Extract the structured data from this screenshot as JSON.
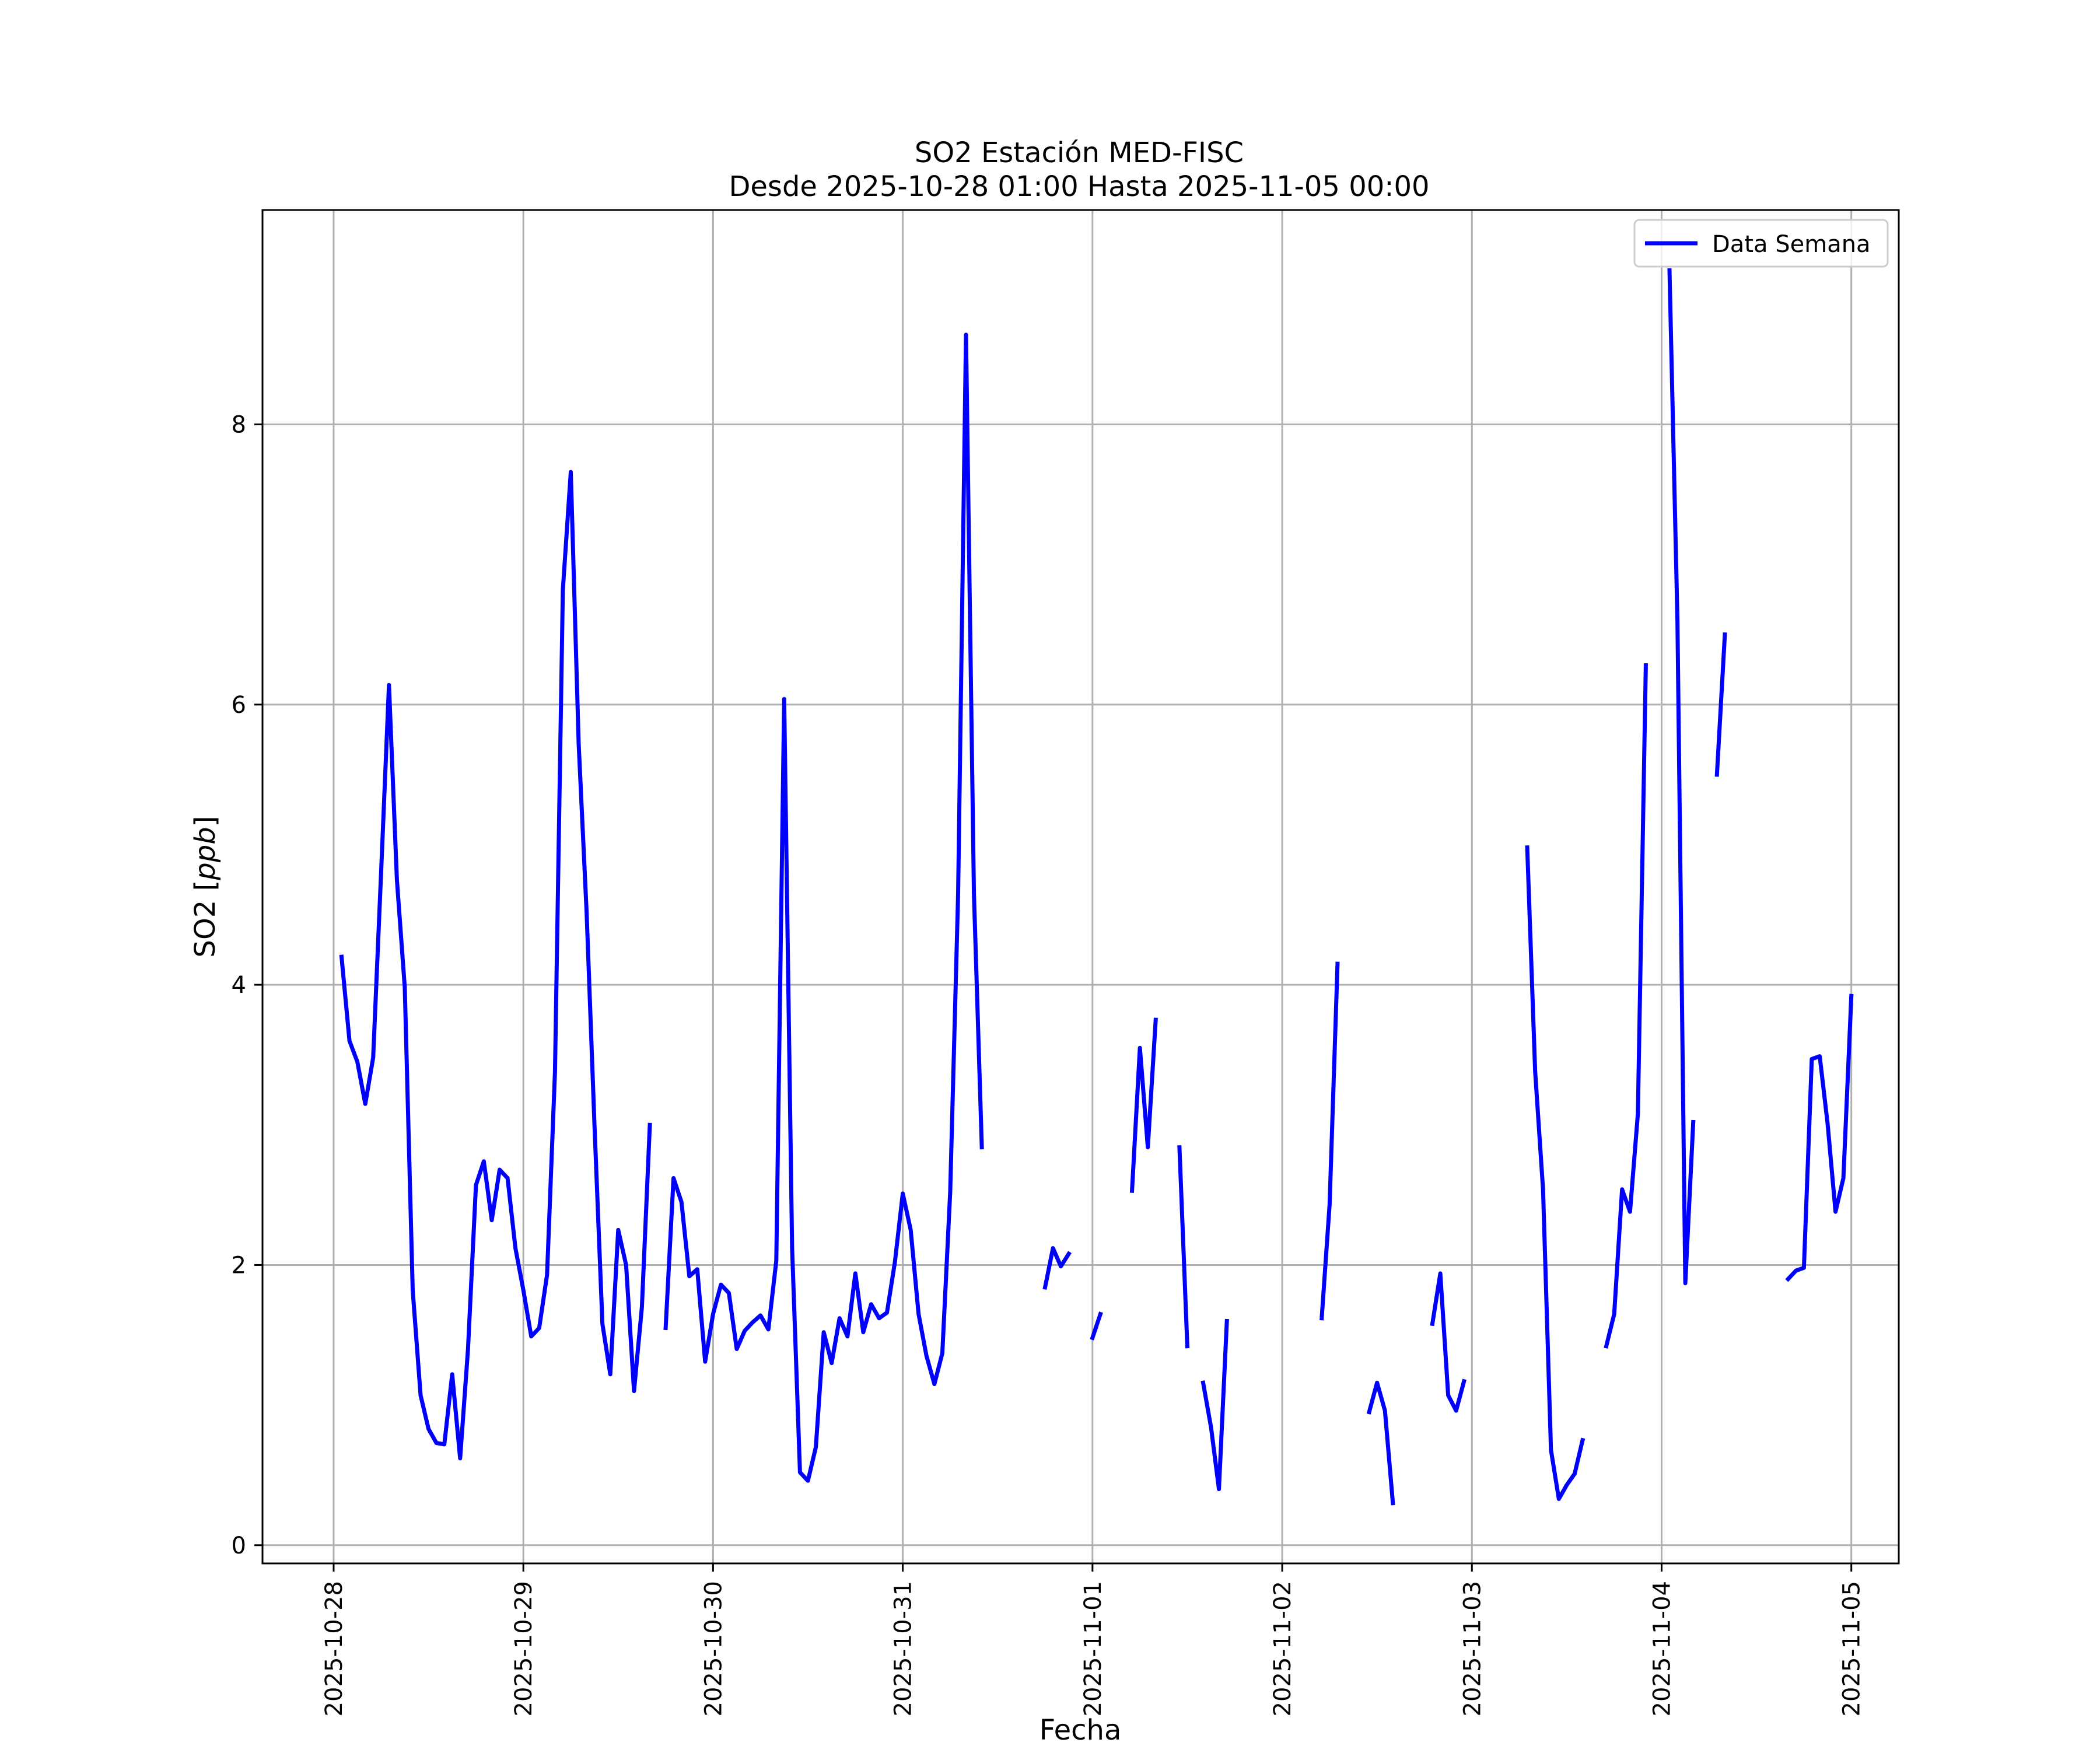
{
  "chart_data": {
    "type": "line",
    "title_line1": "SO2 Estación MED-FISC",
    "title_line2": "Desde 2025-10-28 01:00 Hasta 2025-11-05 00:00",
    "xlabel": "Fecha",
    "ylabel_prefix": "SO2 [",
    "ylabel_unit": "ppb",
    "ylabel_suffix": "]",
    "x_ticks": [
      "2025-10-28",
      "2025-10-29",
      "2025-10-30",
      "2025-10-31",
      "2025-11-01",
      "2025-11-02",
      "2025-11-03",
      "2025-11-04",
      "2025-11-05"
    ],
    "y_ticks": [
      "0",
      "2",
      "4",
      "6",
      "8"
    ],
    "ylim": [
      -0.13,
      9.53
    ],
    "xlim": [
      "2025-10-27 15:00",
      "2025-11-05 06:00"
    ],
    "grid": true,
    "legend_position": "top-right",
    "series": [
      {
        "name": "Data Semana",
        "color": "#0000ff",
        "segments": [
          [
            [
              "2025-10-28 01:00",
              4.2
            ],
            [
              "2025-10-28 02:00",
              3.6
            ],
            [
              "2025-10-28 03:00",
              3.45
            ],
            [
              "2025-10-28 04:00",
              3.15
            ],
            [
              "2025-10-28 05:00",
              3.48
            ],
            [
              "2025-10-28 06:00",
              4.8
            ],
            [
              "2025-10-28 07:00",
              6.14
            ],
            [
              "2025-10-28 08:00",
              4.75
            ],
            [
              "2025-10-28 09:00",
              3.98
            ],
            [
              "2025-10-28 10:00",
              1.82
            ],
            [
              "2025-10-28 11:00",
              1.07
            ],
            [
              "2025-10-28 12:00",
              0.83
            ],
            [
              "2025-10-28 13:00",
              0.73
            ],
            [
              "2025-10-28 14:00",
              0.72
            ],
            [
              "2025-10-28 15:00",
              1.22
            ],
            [
              "2025-10-28 16:00",
              0.62
            ],
            [
              "2025-10-28 17:00",
              1.4
            ],
            [
              "2025-10-28 18:00",
              2.57
            ],
            [
              "2025-10-28 19:00",
              2.74
            ],
            [
              "2025-10-28 20:00",
              2.32
            ],
            [
              "2025-10-28 21:00",
              2.68
            ],
            [
              "2025-10-28 22:00",
              2.62
            ],
            [
              "2025-10-28 23:00",
              2.12
            ],
            [
              "2025-10-29 00:00",
              1.82
            ],
            [
              "2025-10-29 01:00",
              1.49
            ],
            [
              "2025-10-29 02:00",
              1.55
            ],
            [
              "2025-10-29 03:00",
              1.93
            ],
            [
              "2025-10-29 04:00",
              3.38
            ],
            [
              "2025-10-29 05:00",
              6.82
            ],
            [
              "2025-10-29 06:00",
              7.66
            ],
            [
              "2025-10-29 07:00",
              5.72
            ],
            [
              "2025-10-29 08:00",
              4.52
            ],
            [
              "2025-10-29 09:00",
              3.0
            ],
            [
              "2025-10-29 10:00",
              1.58
            ],
            [
              "2025-10-29 11:00",
              1.22
            ],
            [
              "2025-10-29 12:00",
              2.25
            ],
            [
              "2025-10-29 13:00",
              2.0
            ],
            [
              "2025-10-29 14:00",
              1.1
            ],
            [
              "2025-10-29 15:00",
              1.7
            ],
            [
              "2025-10-29 16:00",
              3.0
            ]
          ],
          [
            [
              "2025-10-29 18:00",
              1.55
            ],
            [
              "2025-10-29 19:00",
              2.62
            ],
            [
              "2025-10-29 20:00",
              2.45
            ],
            [
              "2025-10-29 21:00",
              1.92
            ],
            [
              "2025-10-29 22:00",
              1.97
            ],
            [
              "2025-10-29 23:00",
              1.31
            ],
            [
              "2025-10-30 00:00",
              1.65
            ],
            [
              "2025-10-30 01:00",
              1.86
            ],
            [
              "2025-10-30 02:00",
              1.8
            ],
            [
              "2025-10-30 03:00",
              1.4
            ],
            [
              "2025-10-30 04:00",
              1.53
            ],
            [
              "2025-10-30 05:00",
              1.59
            ],
            [
              "2025-10-30 06:00",
              1.64
            ],
            [
              "2025-10-30 07:00",
              1.54
            ],
            [
              "2025-10-30 08:00",
              2.03
            ],
            [
              "2025-10-30 09:00",
              6.04
            ],
            [
              "2025-10-30 10:00",
              2.12
            ],
            [
              "2025-10-30 11:00",
              0.52
            ],
            [
              "2025-10-30 12:00",
              0.46
            ],
            [
              "2025-10-30 13:00",
              0.7
            ],
            [
              "2025-10-30 14:00",
              1.52
            ],
            [
              "2025-10-30 15:00",
              1.3
            ],
            [
              "2025-10-30 16:00",
              1.62
            ],
            [
              "2025-10-30 17:00",
              1.49
            ],
            [
              "2025-10-30 18:00",
              1.94
            ],
            [
              "2025-10-30 19:00",
              1.52
            ],
            [
              "2025-10-30 20:00",
              1.72
            ],
            [
              "2025-10-30 21:00",
              1.62
            ],
            [
              "2025-10-30 22:00",
              1.66
            ],
            [
              "2025-10-30 23:00",
              2.02
            ],
            [
              "2025-10-31 00:00",
              2.51
            ],
            [
              "2025-10-31 01:00",
              2.25
            ],
            [
              "2025-10-31 02:00",
              1.65
            ],
            [
              "2025-10-31 03:00",
              1.35
            ],
            [
              "2025-10-31 04:00",
              1.15
            ],
            [
              "2025-10-31 05:00",
              1.37
            ],
            [
              "2025-10-31 06:00",
              2.52
            ],
            [
              "2025-10-31 07:00",
              4.65
            ],
            [
              "2025-10-31 08:00",
              8.64
            ],
            [
              "2025-10-31 09:00",
              4.65
            ],
            [
              "2025-10-31 10:00",
              2.84
            ]
          ],
          [
            [
              "2025-10-31 18:00",
              1.84
            ],
            [
              "2025-10-31 19:00",
              2.12
            ],
            [
              "2025-10-31 20:00",
              1.99
            ],
            [
              "2025-10-31 21:00",
              2.08
            ]
          ],
          [
            [
              "2025-11-01 00:00",
              1.48
            ],
            [
              "2025-11-01 01:00",
              1.65
            ]
          ],
          [
            [
              "2025-11-01 05:00",
              2.53
            ],
            [
              "2025-11-01 06:00",
              3.55
            ],
            [
              "2025-11-01 07:00",
              2.84
            ],
            [
              "2025-11-01 08:00",
              3.75
            ]
          ],
          [
            [
              "2025-11-01 11:00",
              2.84
            ],
            [
              "2025-11-01 12:00",
              1.42
            ]
          ],
          [
            [
              "2025-11-01 14:00",
              1.16
            ],
            [
              "2025-11-01 15:00",
              0.84
            ],
            [
              "2025-11-01 16:00",
              0.4
            ],
            [
              "2025-11-01 17:00",
              1.6
            ]
          ],
          [
            [
              "2025-11-02 05:00",
              1.62
            ],
            [
              "2025-11-02 06:00",
              2.43
            ],
            [
              "2025-11-02 07:00",
              4.15
            ]
          ],
          [
            [
              "2025-11-02 11:00",
              0.95
            ],
            [
              "2025-11-02 12:00",
              1.16
            ],
            [
              "2025-11-02 13:00",
              0.96
            ],
            [
              "2025-11-02 14:00",
              0.3
            ]
          ],
          [
            [
              "2025-11-02 19:00",
              1.58
            ],
            [
              "2025-11-02 20:00",
              1.94
            ],
            [
              "2025-11-02 21:00",
              1.07
            ],
            [
              "2025-11-02 22:00",
              0.96
            ],
            [
              "2025-11-02 23:00",
              1.17
            ]
          ],
          [
            [
              "2025-11-03 07:00",
              4.98
            ],
            [
              "2025-11-03 08:00",
              3.38
            ],
            [
              "2025-11-03 09:00",
              2.54
            ],
            [
              "2025-11-03 10:00",
              0.68
            ],
            [
              "2025-11-03 11:00",
              0.33
            ],
            [
              "2025-11-03 12:00",
              0.43
            ],
            [
              "2025-11-03 13:00",
              0.51
            ],
            [
              "2025-11-03 14:00",
              0.75
            ]
          ],
          [
            [
              "2025-11-03 17:00",
              1.42
            ],
            [
              "2025-11-03 18:00",
              1.65
            ],
            [
              "2025-11-03 19:00",
              2.54
            ],
            [
              "2025-11-03 20:00",
              2.38
            ],
            [
              "2025-11-03 21:00",
              3.08
            ],
            [
              "2025-11-03 22:00",
              6.28
            ]
          ],
          [
            [
              "2025-11-04 01:00",
              9.1
            ],
            [
              "2025-11-04 02:00",
              6.6
            ],
            [
              "2025-11-04 03:00",
              1.87
            ],
            [
              "2025-11-04 04:00",
              3.02
            ]
          ],
          [
            [
              "2025-11-04 07:00",
              5.5
            ],
            [
              "2025-11-04 08:00",
              6.5
            ]
          ],
          [
            [
              "2025-11-04 16:00",
              1.9
            ],
            [
              "2025-11-04 17:00",
              1.96
            ],
            [
              "2025-11-04 18:00",
              1.98
            ],
            [
              "2025-11-04 19:00",
              3.47
            ],
            [
              "2025-11-04 20:00",
              3.49
            ],
            [
              "2025-11-04 21:00",
              3.01
            ],
            [
              "2025-11-04 22:00",
              2.38
            ],
            [
              "2025-11-04 23:00",
              2.62
            ],
            [
              "2025-11-05 00:00",
              3.92
            ]
          ]
        ]
      }
    ]
  }
}
